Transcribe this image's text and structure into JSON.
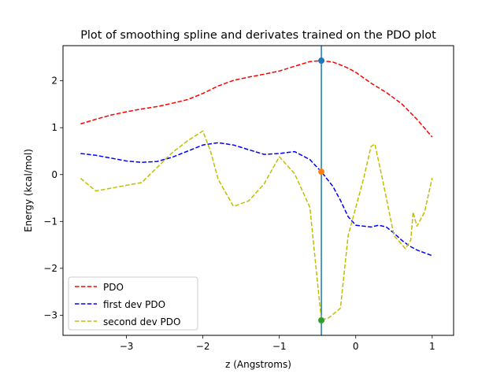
{
  "chart_data": {
    "type": "line",
    "title": "Plot of smoothing spline and derivates trained on the PDO plot",
    "xlabel": "z (Angstroms)",
    "ylabel": "Energy (kcal/mol)",
    "xlim": [
      -3.83,
      1.28
    ],
    "ylim": [
      -3.43,
      2.75
    ],
    "xticks": [
      -3,
      -2,
      -1,
      0,
      1
    ],
    "yticks": [
      -3,
      -2,
      -1,
      0,
      1,
      2
    ],
    "grid": false,
    "legend_position": "lower-left",
    "vline": {
      "x": -0.45,
      "color": "#1f77b4"
    },
    "series": [
      {
        "name": "PDO",
        "color": "#ff0000",
        "x": [
          -3.6,
          -3.4,
          -3.2,
          -3.0,
          -2.8,
          -2.6,
          -2.4,
          -2.2,
          -2.0,
          -1.8,
          -1.6,
          -1.4,
          -1.2,
          -1.0,
          -0.8,
          -0.6,
          -0.45,
          -0.3,
          -0.2,
          -0.1,
          0.0,
          0.2,
          0.4,
          0.6,
          0.8,
          1.0
        ],
        "y": [
          1.08,
          1.18,
          1.27,
          1.34,
          1.4,
          1.45,
          1.52,
          1.6,
          1.73,
          1.89,
          2.01,
          2.08,
          2.14,
          2.21,
          2.31,
          2.41,
          2.43,
          2.4,
          2.34,
          2.27,
          2.18,
          1.95,
          1.75,
          1.51,
          1.18,
          0.8
        ]
      },
      {
        "name": "first dev PDO",
        "color": "#0000ff",
        "x": [
          -3.6,
          -3.4,
          -3.2,
          -3.0,
          -2.8,
          -2.6,
          -2.4,
          -2.2,
          -2.0,
          -1.8,
          -1.6,
          -1.4,
          -1.2,
          -1.0,
          -0.8,
          -0.6,
          -0.45,
          -0.3,
          -0.2,
          -0.1,
          0.0,
          0.2,
          0.3,
          0.4,
          0.5,
          0.6,
          0.7,
          0.8,
          0.9,
          1.0
        ],
        "y": [
          0.45,
          0.41,
          0.35,
          0.29,
          0.26,
          0.28,
          0.37,
          0.5,
          0.63,
          0.68,
          0.63,
          0.53,
          0.43,
          0.45,
          0.49,
          0.32,
          0.06,
          -0.25,
          -0.55,
          -0.9,
          -1.08,
          -1.12,
          -1.08,
          -1.12,
          -1.25,
          -1.4,
          -1.52,
          -1.61,
          -1.67,
          -1.73
        ]
      },
      {
        "name": "second dev PDO",
        "color": "#bfbf00",
        "x": [
          -3.6,
          -3.4,
          -3.2,
          -3.0,
          -2.8,
          -2.6,
          -2.4,
          -2.2,
          -2.0,
          -1.9,
          -1.8,
          -1.6,
          -1.4,
          -1.2,
          -1.0,
          -0.8,
          -0.6,
          -0.45,
          -0.35,
          -0.2,
          -0.1,
          0.0,
          0.1,
          0.2,
          0.25,
          0.35,
          0.5,
          0.65,
          0.72,
          0.75,
          0.8,
          0.9,
          1.0
        ],
        "y": [
          -0.08,
          -0.35,
          -0.29,
          -0.23,
          -0.17,
          0.15,
          0.47,
          0.72,
          0.93,
          0.5,
          -0.1,
          -0.68,
          -0.56,
          -0.2,
          0.38,
          0.02,
          -0.7,
          -3.11,
          -3.05,
          -2.85,
          -1.3,
          -0.7,
          -0.1,
          0.6,
          0.65,
          -0.1,
          -1.3,
          -1.58,
          -1.4,
          -0.8,
          -1.1,
          -0.8,
          -0.07
        ]
      }
    ],
    "markers": [
      {
        "x": -0.45,
        "y": 2.43,
        "color": "#1f77b4"
      },
      {
        "x": -0.45,
        "y": 0.06,
        "color": "#ff7f0e"
      },
      {
        "x": -0.45,
        "y": -3.11,
        "color": "#2ca02c"
      }
    ]
  }
}
